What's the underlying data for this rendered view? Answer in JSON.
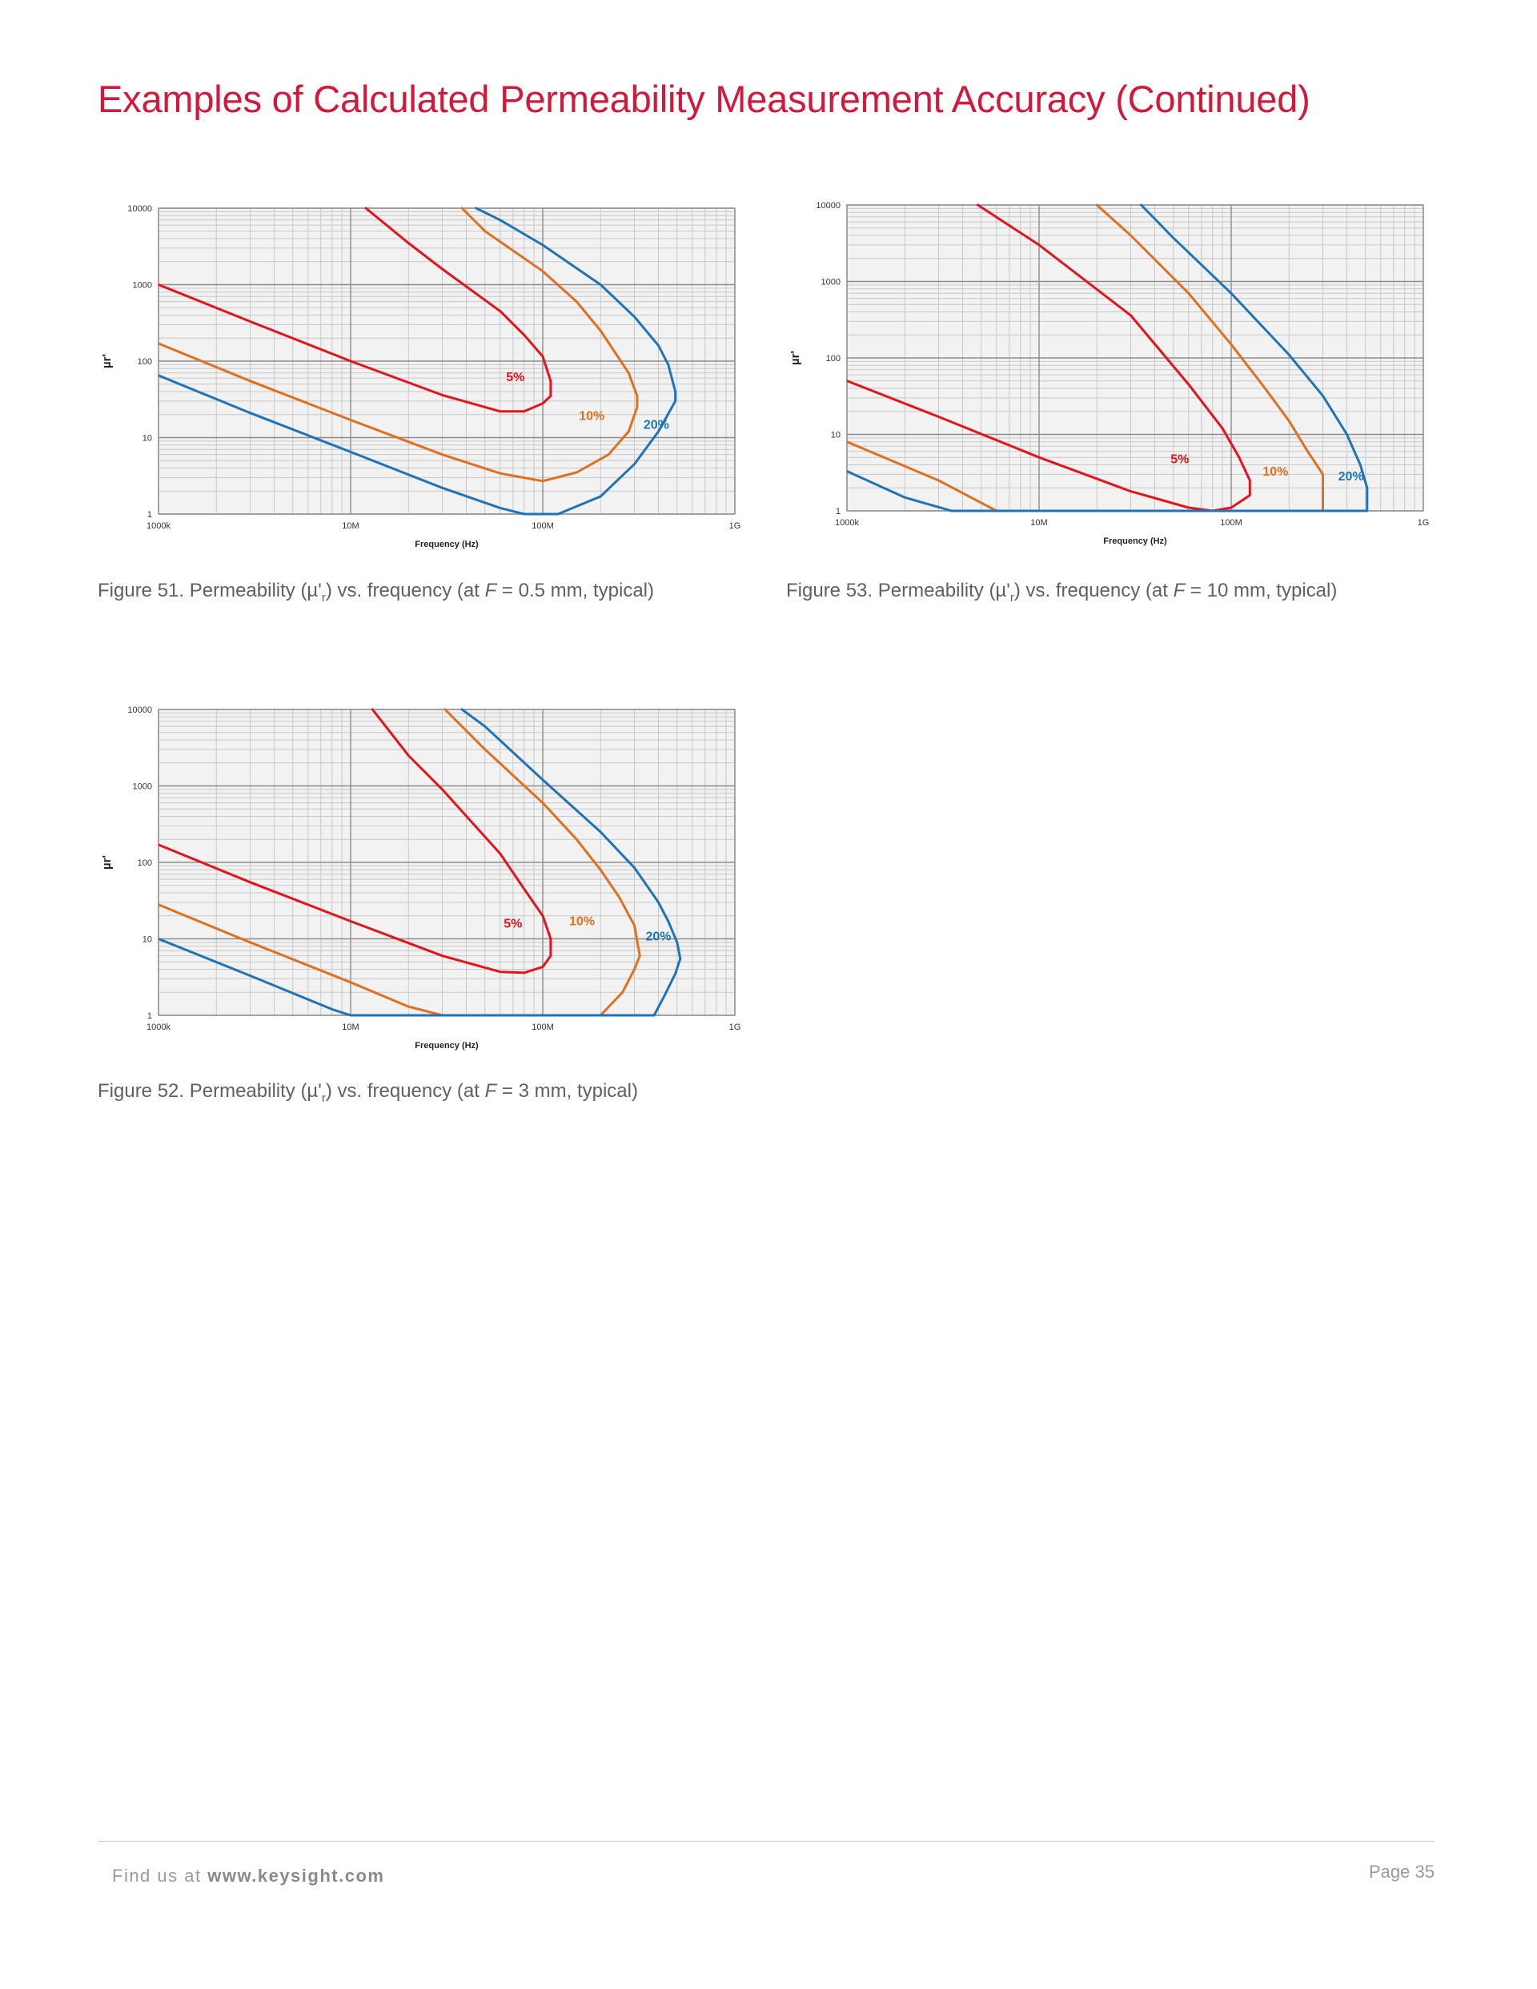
{
  "page": {
    "title": "Examples of Calculated Permeability Measurement Accuracy (Continued)",
    "footer_prefix": "Find us at ",
    "footer_link": "www.keysight.com",
    "page_number": "Page 35"
  },
  "figures": [
    {
      "id": "fig51",
      "caption": {
        "before": "Figure 51. Permeability (µ'",
        "sub": "r",
        "middle": ") vs. frequency (at ",
        "var": "F",
        "after": " = 0.5 mm, typical)"
      }
    },
    {
      "id": "fig53",
      "caption": {
        "before": "Figure 53. Permeability (µ'",
        "sub": "r",
        "middle": ") vs. frequency (at ",
        "var": "F",
        "after": " = 10 mm, typical)"
      }
    },
    {
      "id": "fig52",
      "caption": {
        "before": "Figure 52. Permeability (µ'",
        "sub": "r",
        "middle": ") vs. frequency (at ",
        "var": "F",
        "after": " = 3 mm, typical)"
      }
    }
  ],
  "chart_data": [
    {
      "type": "line",
      "figure": "Figure 51",
      "xlabel": "Frequency (Hz)",
      "ylabel": "µr'",
      "xscale": "log",
      "yscale": "log",
      "xlim": [
        1000000,
        1000000000
      ],
      "ylim": [
        1,
        10000
      ],
      "x_ticks": [
        "1000k",
        "10M",
        "100M",
        "1G"
      ],
      "y_ticks": [
        "1",
        "10",
        "100",
        "1000",
        "10000"
      ],
      "grid": true,
      "legend": "none",
      "series": [
        {
          "name": "5%",
          "color": "#e3141c",
          "label_at": [
            72000000,
            55
          ],
          "points": [
            [
              1000000,
              1000
            ],
            [
              3000000,
              330
            ],
            [
              10000000,
              100
            ],
            [
              30000000,
              36
            ],
            [
              60000000,
              22
            ],
            [
              80000000,
              22
            ],
            [
              100000000,
              28
            ],
            [
              110000000,
              35
            ],
            [
              110000000,
              55
            ],
            [
              100000000,
              115
            ],
            [
              80000000,
              220
            ],
            [
              60000000,
              450
            ],
            [
              30000000,
              1600
            ],
            [
              20000000,
              3500
            ],
            [
              12000000,
              10000
            ]
          ]
        },
        {
          "name": "10%",
          "color": "#e07020",
          "label_at": [
            180000000,
            17
          ],
          "points": [
            [
              1000000,
              170
            ],
            [
              3000000,
              55
            ],
            [
              10000000,
              17
            ],
            [
              30000000,
              6
            ],
            [
              60000000,
              3.4
            ],
            [
              100000000,
              2.7
            ],
            [
              150000000,
              3.5
            ],
            [
              220000000,
              6
            ],
            [
              280000000,
              12
            ],
            [
              310000000,
              25
            ],
            [
              310000000,
              35
            ],
            [
              280000000,
              70
            ],
            [
              200000000,
              250
            ],
            [
              150000000,
              600
            ],
            [
              100000000,
              1500
            ],
            [
              50000000,
              5000
            ],
            [
              38000000,
              10000
            ]
          ]
        },
        {
          "name": "20%",
          "color": "#1f73b8",
          "label_at": [
            390000000,
            13
          ],
          "points": [
            [
              1000000,
              65
            ],
            [
              3000000,
              21
            ],
            [
              10000000,
              6.5
            ],
            [
              30000000,
              2.2
            ],
            [
              60000000,
              1.2
            ],
            [
              80000000,
              1
            ],
            [
              120000000,
              1
            ],
            [
              200000000,
              1.7
            ],
            [
              300000000,
              4.5
            ],
            [
              400000000,
              12
            ],
            [
              490000000,
              30
            ],
            [
              490000000,
              40
            ],
            [
              450000000,
              90
            ],
            [
              400000000,
              160
            ],
            [
              300000000,
              380
            ],
            [
              200000000,
              1000
            ],
            [
              100000000,
              3300
            ],
            [
              60000000,
              7000
            ],
            [
              45000000,
              10000
            ]
          ]
        }
      ]
    },
    {
      "type": "line",
      "figure": "Figure 53",
      "xlabel": "Frequency (Hz)",
      "ylabel": "µr'",
      "xscale": "log",
      "yscale": "log",
      "xlim": [
        1000000,
        1000000000
      ],
      "ylim": [
        1,
        10000
      ],
      "x_ticks": [
        "1000k",
        "10M",
        "100M",
        "1G"
      ],
      "y_ticks": [
        "1",
        "10",
        "100",
        "1000",
        "10000"
      ],
      "grid": true,
      "legend": "none",
      "series": [
        {
          "name": "5%",
          "color": "#e3141c",
          "label_at": [
            54000000,
            4.2
          ],
          "points": [
            [
              1000000,
              50
            ],
            [
              3000000,
              17
            ],
            [
              10000000,
              5
            ],
            [
              30000000,
              1.8
            ],
            [
              60000000,
              1.1
            ],
            [
              80000000,
              1
            ],
            [
              100000000,
              1.1
            ],
            [
              125000000,
              1.6
            ],
            [
              125000000,
              2.5
            ],
            [
              110000000,
              5
            ],
            [
              90000000,
              12
            ],
            [
              60000000,
              45
            ],
            [
              30000000,
              360
            ],
            [
              10000000,
              3000
            ],
            [
              4800000,
              10000
            ]
          ]
        },
        {
          "name": "10%",
          "color": "#e07020",
          "label_at": [
            170000000,
            2.9
          ],
          "points": [
            [
              1000000,
              8
            ],
            [
              3000000,
              2.5
            ],
            [
              6000000,
              1
            ],
            [
              300000000,
              1
            ],
            [
              300000000,
              3
            ],
            [
              250000000,
              6
            ],
            [
              200000000,
              15
            ],
            [
              150000000,
              40
            ],
            [
              100000000,
              150
            ],
            [
              60000000,
              700
            ],
            [
              30000000,
              4000
            ],
            [
              20000000,
              10000
            ]
          ]
        },
        {
          "name": "20%",
          "color": "#1f73b8",
          "label_at": [
            420000000,
            2.5
          ],
          "points": [
            [
              1000000,
              3.3
            ],
            [
              2000000,
              1.5
            ],
            [
              3500000,
              1
            ],
            [
              510000000,
              1
            ],
            [
              510000000,
              2
            ],
            [
              470000000,
              4
            ],
            [
              400000000,
              10
            ],
            [
              300000000,
              32
            ],
            [
              200000000,
              110
            ],
            [
              100000000,
              700
            ],
            [
              50000000,
              3700
            ],
            [
              34000000,
              10000
            ]
          ]
        }
      ]
    },
    {
      "type": "line",
      "figure": "Figure 52",
      "xlabel": "Frequency (Hz)",
      "ylabel": "µr'",
      "xscale": "log",
      "yscale": "log",
      "xlim": [
        1000000,
        1000000000
      ],
      "ylim": [
        1,
        10000
      ],
      "x_ticks": [
        "1000k",
        "10M",
        "100M",
        "1G"
      ],
      "y_ticks": [
        "1",
        "10",
        "100",
        "1000",
        "10000"
      ],
      "grid": true,
      "legend": "none",
      "series": [
        {
          "name": "5%",
          "color": "#e3141c",
          "label_at": [
            70000000,
            14
          ],
          "points": [
            [
              1000000,
              170
            ],
            [
              3000000,
              55
            ],
            [
              10000000,
              17
            ],
            [
              30000000,
              6
            ],
            [
              60000000,
              3.7
            ],
            [
              80000000,
              3.6
            ],
            [
              100000000,
              4.3
            ],
            [
              110000000,
              6
            ],
            [
              110000000,
              10
            ],
            [
              100000000,
              20
            ],
            [
              80000000,
              45
            ],
            [
              60000000,
              130
            ],
            [
              30000000,
              900
            ],
            [
              20000000,
              2500
            ],
            [
              13000000,
              10000
            ]
          ]
        },
        {
          "name": "10%",
          "color": "#e07020",
          "label_at": [
            160000000,
            15
          ],
          "points": [
            [
              1000000,
              28
            ],
            [
              3000000,
              9
            ],
            [
              10000000,
              2.7
            ],
            [
              20000000,
              1.3
            ],
            [
              30000000,
              1
            ],
            [
              200000000,
              1
            ],
            [
              260000000,
              2
            ],
            [
              300000000,
              4
            ],
            [
              320000000,
              6
            ],
            [
              300000000,
              15
            ],
            [
              250000000,
              35
            ],
            [
              200000000,
              80
            ],
            [
              150000000,
              200
            ],
            [
              100000000,
              600
            ],
            [
              50000000,
              3000
            ],
            [
              31000000,
              10000
            ]
          ]
        },
        {
          "name": "20%",
          "color": "#1f73b8",
          "label_at": [
            400000000,
            9.5
          ],
          "points": [
            [
              1000000,
              10
            ],
            [
              3000000,
              3.3
            ],
            [
              8000000,
              1.2
            ],
            [
              10000000,
              1
            ],
            [
              380000000,
              1
            ],
            [
              430000000,
              1.8
            ],
            [
              490000000,
              3.5
            ],
            [
              520000000,
              5.5
            ],
            [
              500000000,
              9
            ],
            [
              450000000,
              17
            ],
            [
              400000000,
              30
            ],
            [
              300000000,
              85
            ],
            [
              200000000,
              250
            ],
            [
              100000000,
              1200
            ],
            [
              50000000,
              6000
            ],
            [
              38000000,
              10000
            ]
          ]
        }
      ]
    }
  ]
}
